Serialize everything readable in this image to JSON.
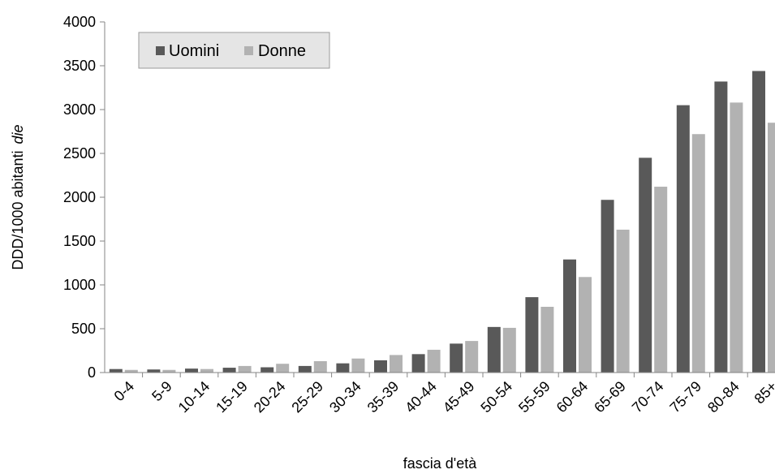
{
  "chart_data": {
    "type": "bar",
    "categories": [
      "0-4",
      "5-9",
      "10-14",
      "15-19",
      "20-24",
      "25-29",
      "30-34",
      "35-39",
      "40-44",
      "45-49",
      "50-54",
      "55-59",
      "60-64",
      "65-69",
      "70-74",
      "75-79",
      "80-84",
      "85+"
    ],
    "series": [
      {
        "name": "Uomini",
        "color": "#595959",
        "values": [
          40,
          35,
          45,
          55,
          60,
          75,
          105,
          140,
          210,
          330,
          520,
          860,
          1290,
          1970,
          2450,
          3050,
          3320,
          3440
        ]
      },
      {
        "name": "Donne",
        "color": "#b2b2b2",
        "values": [
          30,
          30,
          40,
          75,
          100,
          130,
          160,
          200,
          260,
          360,
          510,
          750,
          1090,
          1630,
          2120,
          2720,
          3080,
          2850
        ]
      }
    ],
    "xlabel": "fascia d'età",
    "ylabel_main": "DDD/1000 abitanti",
    "ylabel_italic": "die",
    "ylim": [
      0,
      4000
    ],
    "yticks": [
      0,
      500,
      1000,
      1500,
      2000,
      2500,
      3000,
      3500,
      4000
    ],
    "legend_position": "top-left",
    "grid": false
  }
}
